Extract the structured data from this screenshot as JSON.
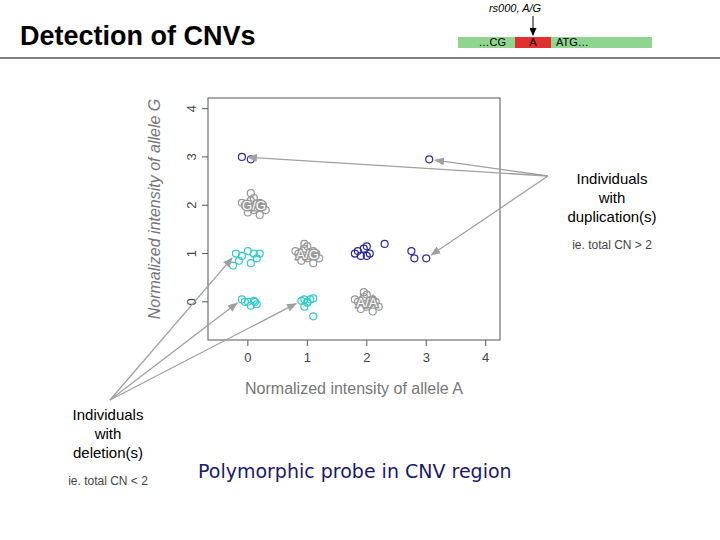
{
  "header": {
    "title": "Detection of CNVs",
    "snp_label": "rs000, A/G",
    "left_seq": "…CG",
    "allele": "A",
    "right_seq": "ATG…"
  },
  "chart_data": {
    "type": "scatter",
    "marker": "circle-open",
    "grid": false,
    "x_label": "Normalized intensity of allele A",
    "y_label": "Normalized intensity of allele G",
    "xlim": [
      -0.67,
      4.24
    ],
    "ylim": [
      -0.79,
      4.22
    ],
    "xticks": [
      0,
      1,
      2,
      3,
      4
    ],
    "yticks": [
      0,
      1,
      2,
      3,
      4
    ],
    "series": [
      {
        "name": "G/G",
        "color": "#999999",
        "x": [
          -0.05,
          0.05,
          0.15,
          0.2,
          0.1,
          0.0,
          0.25,
          0.1,
          -0.1,
          0.3,
          0.05,
          0.2
        ],
        "values": [
          2.0,
          2.1,
          1.95,
          2.05,
          1.9,
          1.85,
          2.0,
          2.15,
          2.05,
          1.9,
          2.25,
          1.8
        ]
      },
      {
        "name": "A/G",
        "color": "#999999",
        "x": [
          0.85,
          0.95,
          1.05,
          1.1,
          1.0,
          0.9,
          1.15,
          1.0,
          0.8,
          1.2,
          0.95,
          1.1
        ],
        "values": [
          1.0,
          1.1,
          0.95,
          1.05,
          0.9,
          0.85,
          1.0,
          1.15,
          1.05,
          0.9,
          1.2,
          0.8
        ]
      },
      {
        "name": "A/A",
        "color": "#999999",
        "x": [
          1.85,
          1.95,
          2.05,
          2.1,
          2.0,
          1.9,
          2.15,
          2.0,
          1.8,
          2.2,
          1.95,
          2.1
        ],
        "values": [
          0.0,
          0.1,
          -0.05,
          0.05,
          -0.1,
          -0.15,
          0.0,
          0.15,
          0.05,
          -0.1,
          0.2,
          -0.2
        ]
      },
      {
        "color": "#33cccc",
        "x": [
          -0.2,
          -0.1,
          0.0,
          0.1,
          0.15,
          -0.15,
          0.05,
          0.2,
          -0.25,
          -0.1,
          0.0,
          0.1,
          0.15,
          0.05,
          -0.05,
          0.12,
          0.9,
          0.95,
          1.0,
          1.05,
          1.1,
          0.95,
          1.1,
          1.0
        ],
        "values": [
          1.0,
          0.95,
          1.05,
          1.0,
          0.9,
          0.85,
          0.8,
          1.0,
          0.75,
          0.05,
          0.0,
          0.02,
          -0.05,
          -0.08,
          0.0,
          0.0,
          0.02,
          0.05,
          -0.02,
          0.05,
          0.07,
          -0.1,
          -0.3,
          0.0
        ]
      },
      {
        "color": "#2b2b9e",
        "x": [
          -0.1,
          0.05,
          3.05,
          1.8,
          1.85,
          1.9,
          1.95,
          2.0,
          2.05,
          2.0,
          2.3,
          2.75,
          2.8,
          3.0
        ],
        "values": [
          3.0,
          2.95,
          2.95,
          1.0,
          1.05,
          0.95,
          1.1,
          1.15,
          1.0,
          0.95,
          1.2,
          1.05,
          0.9,
          0.9
        ]
      }
    ]
  },
  "annotations": [
    {
      "text": "Individuals with duplication(s)",
      "note": "ie. total CN > 2"
    },
    {
      "text": "Individuals with deletion(s)",
      "note": "ie. total CN < 2"
    }
  ],
  "caption": "Polymorphic probe in CNV region"
}
